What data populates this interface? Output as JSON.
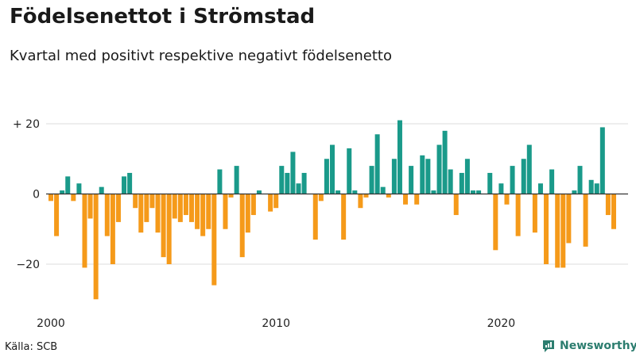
{
  "title": "Födelsenettot i Strömstad",
  "subtitle": "Kvartal med positivt respektive negativt födelsenetto",
  "source": "Källa: SCB",
  "brand": {
    "name": "Newsworthy",
    "logo_icon": "newsworthy-chat-chart-icon"
  },
  "colors": {
    "positive": "#1a9a8a",
    "negative": "#f59a1a",
    "grid": "#dddddd",
    "zero_line": "#333333",
    "brand": "#2c7d6f"
  },
  "chart_data": {
    "type": "bar",
    "title": "Födelsenettot i Strömstad",
    "subtitle": "Kvartal med positivt respektive negativt födelsenetto",
    "frequency": "quarterly",
    "start": "2000 Q1",
    "x_tick_labels": [
      "2000",
      "2010",
      "2020"
    ],
    "y_tick_labels": [
      "+ 20",
      "0",
      "−20"
    ],
    "y_ticks": [
      20,
      0,
      -20
    ],
    "ylim": [
      -31,
      24
    ],
    "grid": "horizontal",
    "values": [
      -2,
      -12,
      1,
      5,
      -2,
      3,
      -21,
      -7,
      -30,
      2,
      -12,
      -20,
      -8,
      5,
      6,
      -4,
      -11,
      -8,
      -4,
      -11,
      -18,
      -20,
      -7,
      -8,
      -6,
      -8,
      -10,
      -12,
      -10,
      -26,
      7,
      -10,
      -1,
      8,
      -18,
      -11,
      -6,
      1,
      0,
      -5,
      -4,
      8,
      6,
      12,
      3,
      6,
      0,
      -13,
      -2,
      10,
      14,
      1,
      -13,
      13,
      1,
      -4,
      -1,
      8,
      17,
      2,
      -1,
      10,
      21,
      -3,
      8,
      -3,
      11,
      10,
      1,
      14,
      18,
      7,
      -6,
      6,
      10,
      1,
      1,
      0,
      6,
      -16,
      3,
      -3,
      8,
      -12,
      10,
      14,
      -11,
      3,
      -20,
      7,
      -21,
      -21,
      -14,
      1,
      8,
      -15,
      4,
      3,
      19,
      -6,
      -10
    ]
  }
}
